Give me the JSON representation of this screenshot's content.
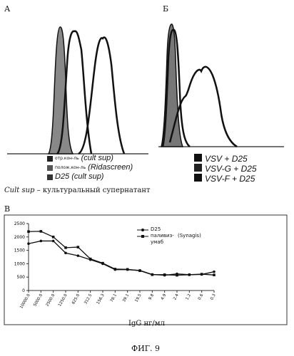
{
  "panel_a": {
    "letter": "А",
    "legend": [
      {
        "small": "отр.кон-ль",
        "big": "(cult sup)",
        "color": "#222222"
      },
      {
        "small": "полож.кон-ль",
        "big": "(Ridascreen)",
        "color": "#555555"
      },
      {
        "small": "",
        "big": "D25 (cult sup)",
        "color": "#333333"
      }
    ]
  },
  "panel_b": {
    "letter": "Б",
    "legend": [
      {
        "label": "VSV + D25",
        "color": "#111111"
      },
      {
        "label": "VSV-G + D25",
        "color": "#222222"
      },
      {
        "label": "VSV-F + D25",
        "color": "#111111"
      }
    ]
  },
  "note": {
    "term": "Cult sup",
    "rest": " – культуральный супернатант"
  },
  "panel_c": {
    "letter": "В",
    "xlabel": "IgG нг/мл"
  },
  "figure_label": "ФИГ. 9",
  "chart_data": {
    "type": "line",
    "categories": [
      "10000.0",
      "5000.0",
      "2500.0",
      "1250.0",
      "625.0",
      "312.5",
      "156.3",
      "78.1",
      "39.1",
      "19.5",
      "9.8",
      "4.9",
      "2.4",
      "1.2",
      "0.6",
      "0.3"
    ],
    "series": [
      {
        "name": "D25",
        "marker": "circle",
        "values": [
          1750,
          1850,
          1850,
          1400,
          1300,
          1150,
          1000,
          780,
          780,
          750,
          600,
          570,
          620,
          590,
          600,
          700
        ]
      },
      {
        "name": "паливиз-умаб",
        "name_note": "(Synagis)",
        "marker": "square",
        "values": [
          2200,
          2210,
          2000,
          1600,
          1620,
          1180,
          1020,
          800,
          790,
          740,
          590,
          590,
          570,
          590,
          610,
          580
        ]
      }
    ],
    "yticks": [
      0,
      500,
      1000,
      1500,
      2000,
      2500
    ],
    "ylim": [
      0,
      2500
    ]
  }
}
